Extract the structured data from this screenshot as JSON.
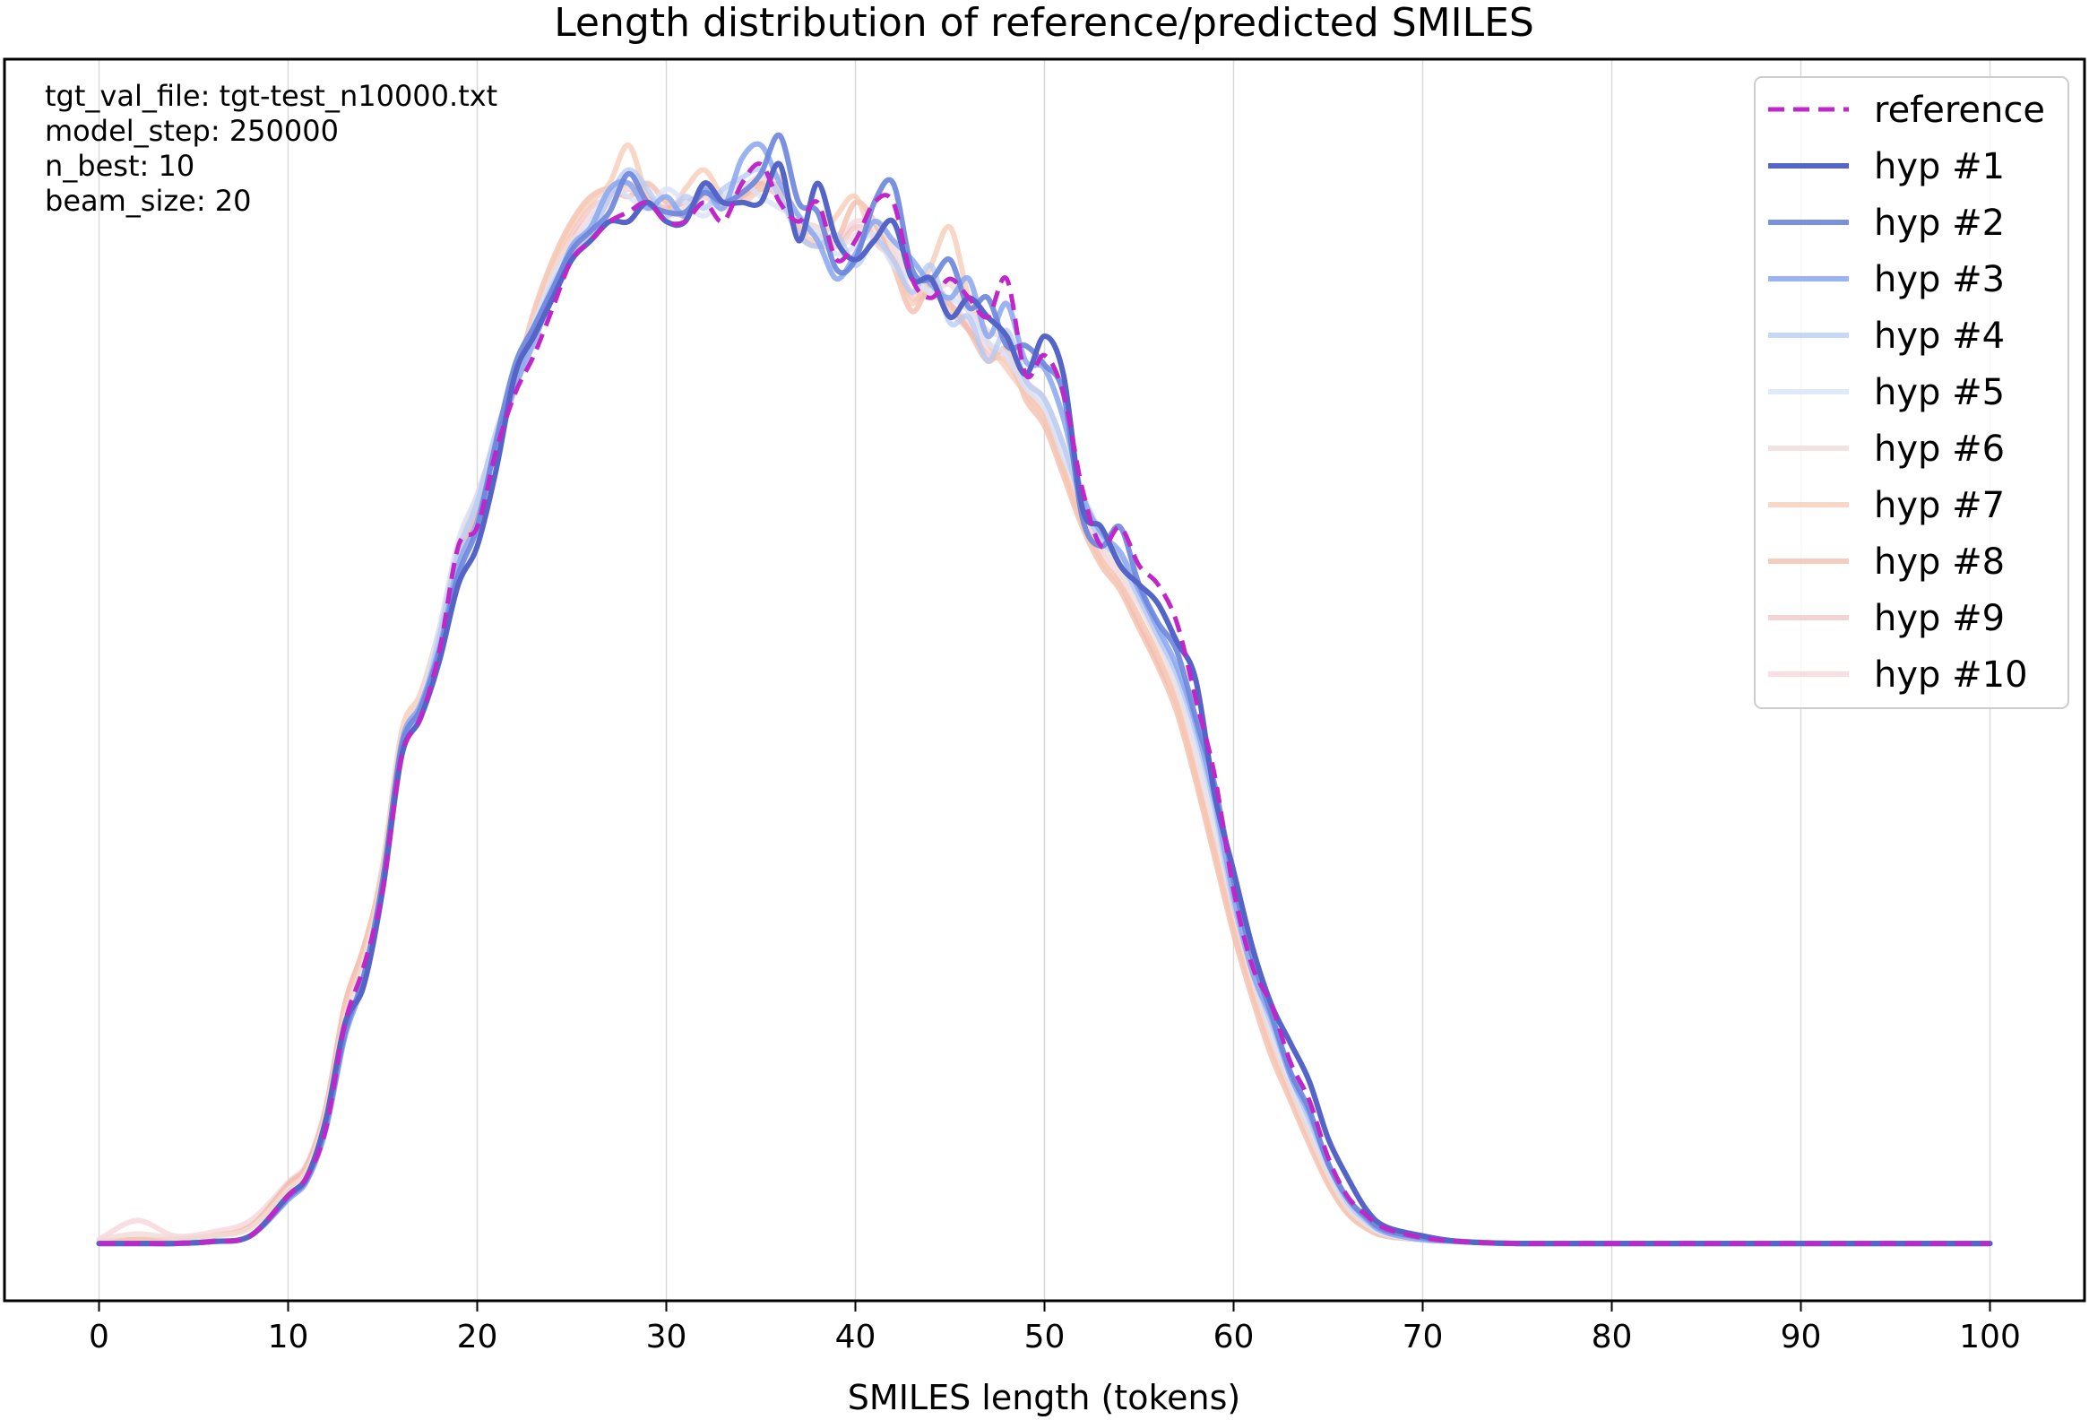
{
  "chart_data": {
    "type": "line",
    "title": "Length distribution of reference/predicted SMILES",
    "xlabel": "SMILES length (tokens)",
    "ylabel": "",
    "xlim": [
      -5,
      105
    ],
    "ylim": [
      -0.003,
      0.062
    ],
    "x_ticks": [
      "0",
      "10",
      "20",
      "30",
      "40",
      "50",
      "60",
      "70",
      "80",
      "90",
      "100"
    ],
    "y_ticks_shown": false,
    "grid": "vertical",
    "legend_placement": "top-right",
    "annotation_lines": [
      "tgt_val_file: tgt-test_n10000.txt",
      "model_step: 250000",
      "n_best: 10",
      "beam_size: 20"
    ],
    "x": [
      0,
      2,
      4,
      6,
      8,
      10,
      11,
      12,
      13,
      14,
      15,
      16,
      17,
      18,
      19,
      20,
      21,
      22,
      23,
      24,
      25,
      26,
      27,
      28,
      29,
      30,
      31,
      32,
      33,
      34,
      35,
      36,
      37,
      38,
      39,
      40,
      41,
      42,
      43,
      44,
      45,
      46,
      47,
      48,
      49,
      50,
      51,
      52,
      53,
      54,
      55,
      56,
      57,
      58,
      59,
      60,
      61,
      62,
      63,
      64,
      65,
      66,
      67,
      68,
      70,
      72,
      75,
      80,
      85,
      90,
      95,
      100
    ],
    "series": [
      {
        "name": "reference",
        "color": "#c026c8",
        "dashed": true,
        "width": 5,
        "opacity": 1,
        "values": [
          0,
          0,
          0,
          0.0001,
          0.0004,
          0.0025,
          0.0035,
          0.006,
          0.0115,
          0.0145,
          0.0185,
          0.0255,
          0.0275,
          0.031,
          0.0365,
          0.0375,
          0.0415,
          0.0445,
          0.0465,
          0.049,
          0.0515,
          0.0525,
          0.0535,
          0.054,
          0.0545,
          0.0535,
          0.0535,
          0.0545,
          0.0535,
          0.0555,
          0.0565,
          0.0545,
          0.0535,
          0.0545,
          0.0515,
          0.0525,
          0.0545,
          0.0545,
          0.0505,
          0.0495,
          0.0505,
          0.0495,
          0.0485,
          0.0505,
          0.0455,
          0.0465,
          0.0445,
          0.0395,
          0.0365,
          0.0375,
          0.0355,
          0.0345,
          0.0325,
          0.0285,
          0.0245,
          0.0185,
          0.0145,
          0.0125,
          0.0095,
          0.0075,
          0.0045,
          0.0025,
          0.0015,
          0.0008,
          0.0003,
          0.0001,
          0,
          0,
          0,
          0,
          0,
          0
        ]
      },
      {
        "name": "hyp #1",
        "color": "#5465c7",
        "dashed": false,
        "width": 6,
        "opacity": 1,
        "values": [
          0,
          0,
          0,
          0.0001,
          0.0004,
          0.0025,
          0.0035,
          0.0065,
          0.0115,
          0.0135,
          0.0185,
          0.0255,
          0.0275,
          0.0305,
          0.0345,
          0.0365,
          0.0405,
          0.0455,
          0.0475,
          0.0495,
          0.0515,
          0.0525,
          0.0535,
          0.0535,
          0.0545,
          0.0535,
          0.0535,
          0.0555,
          0.0545,
          0.0545,
          0.0545,
          0.0565,
          0.0525,
          0.0555,
          0.0525,
          0.0515,
          0.0525,
          0.0535,
          0.0505,
          0.0505,
          0.0485,
          0.0495,
          0.0485,
          0.0475,
          0.0455,
          0.0475,
          0.0455,
          0.0385,
          0.0375,
          0.0355,
          0.0345,
          0.0335,
          0.0315,
          0.0295,
          0.0235,
          0.0195,
          0.0155,
          0.0125,
          0.0105,
          0.0085,
          0.0055,
          0.0035,
          0.0018,
          0.0009,
          0.0004,
          0.0001,
          0,
          0,
          0,
          0,
          0,
          0
        ]
      },
      {
        "name": "hyp #2",
        "color": "#6c85dc",
        "dashed": false,
        "width": 6,
        "opacity": 0.9,
        "values": [
          0,
          0,
          0,
          0.0001,
          0.0004,
          0.0024,
          0.0034,
          0.0062,
          0.011,
          0.014,
          0.019,
          0.026,
          0.028,
          0.031,
          0.035,
          0.0375,
          0.042,
          0.046,
          0.048,
          0.05,
          0.052,
          0.053,
          0.054,
          0.056,
          0.0545,
          0.054,
          0.054,
          0.055,
          0.0545,
          0.055,
          0.056,
          0.058,
          0.0545,
          0.054,
          0.051,
          0.0515,
          0.0545,
          0.0555,
          0.051,
          0.0505,
          0.0515,
          0.049,
          0.0495,
          0.047,
          0.047,
          0.046,
          0.0445,
          0.038,
          0.0365,
          0.0375,
          0.0345,
          0.0325,
          0.031,
          0.0275,
          0.024,
          0.019,
          0.015,
          0.012,
          0.009,
          0.007,
          0.0042,
          0.0024,
          0.0014,
          0.0007,
          0.0003,
          0.0001,
          0,
          0,
          0,
          0,
          0,
          0
        ]
      },
      {
        "name": "hyp #3",
        "color": "#8aa7ee",
        "dashed": false,
        "width": 6,
        "opacity": 0.85,
        "values": [
          0,
          0,
          0,
          0.0001,
          0.0004,
          0.0023,
          0.0033,
          0.006,
          0.0108,
          0.0138,
          0.0188,
          0.0262,
          0.0282,
          0.0312,
          0.0355,
          0.0378,
          0.0418,
          0.0448,
          0.0472,
          0.0498,
          0.0522,
          0.0532,
          0.0552,
          0.0555,
          0.0542,
          0.0548,
          0.0538,
          0.0552,
          0.0542,
          0.0568,
          0.0575,
          0.0555,
          0.0538,
          0.0525,
          0.0505,
          0.0518,
          0.0535,
          0.0525,
          0.0515,
          0.0502,
          0.0495,
          0.0505,
          0.0475,
          0.0492,
          0.0462,
          0.0458,
          0.0432,
          0.0392,
          0.0372,
          0.0362,
          0.0342,
          0.0322,
          0.0302,
          0.0272,
          0.0232,
          0.0182,
          0.0142,
          0.0118,
          0.0088,
          0.0068,
          0.0042,
          0.0024,
          0.0013,
          0.0006,
          0.0002,
          0.0001,
          0,
          0,
          0,
          0,
          0,
          0
        ]
      },
      {
        "name": "hyp #4",
        "color": "#b4c9f4",
        "dashed": false,
        "width": 6,
        "opacity": 0.75,
        "values": [
          0,
          0,
          0,
          0.0001,
          0.0004,
          0.0023,
          0.0033,
          0.006,
          0.011,
          0.014,
          0.019,
          0.0258,
          0.0278,
          0.0318,
          0.0362,
          0.0388,
          0.0425,
          0.0452,
          0.0478,
          0.0502,
          0.0518,
          0.0528,
          0.0548,
          0.0562,
          0.0552,
          0.0538,
          0.0548,
          0.0542,
          0.0552,
          0.0558,
          0.0562,
          0.0548,
          0.0528,
          0.0522,
          0.0528,
          0.0512,
          0.0525,
          0.0515,
          0.0498,
          0.0512,
          0.0482,
          0.0485,
          0.0462,
          0.0478,
          0.0452,
          0.0442,
          0.0418,
          0.0388,
          0.0368,
          0.0358,
          0.0338,
          0.0318,
          0.0298,
          0.0268,
          0.0228,
          0.0178,
          0.0142,
          0.0115,
          0.0088,
          0.0065,
          0.0041,
          0.0022,
          0.0012,
          0.0006,
          0.0002,
          0.0001,
          0,
          0,
          0,
          0,
          0,
          0
        ]
      },
      {
        "name": "hyp #5",
        "color": "#d9e2f6",
        "dashed": false,
        "width": 6,
        "opacity": 0.8,
        "values": [
          0,
          0,
          0,
          0.0001,
          0.0004,
          0.0024,
          0.0034,
          0.0062,
          0.0112,
          0.0142,
          0.0188,
          0.0258,
          0.0282,
          0.0322,
          0.0368,
          0.0392,
          0.0422,
          0.0455,
          0.0482,
          0.0505,
          0.0522,
          0.0535,
          0.0552,
          0.0548,
          0.0542,
          0.0552,
          0.0545,
          0.0538,
          0.0548,
          0.0555,
          0.0548,
          0.0542,
          0.0538,
          0.0528,
          0.0518,
          0.0522,
          0.0528,
          0.0512,
          0.0505,
          0.0498,
          0.0495,
          0.0488,
          0.0472,
          0.0465,
          0.0448,
          0.0438,
          0.0412,
          0.0392,
          0.0372,
          0.0355,
          0.0338,
          0.0318,
          0.0295,
          0.0262,
          0.0222,
          0.0178,
          0.0142,
          0.0112,
          0.0085,
          0.0062,
          0.0039,
          0.0021,
          0.0011,
          0.0005,
          0.0002,
          0.0001,
          0,
          0,
          0,
          0,
          0,
          0
        ]
      },
      {
        "name": "hyp #6",
        "color": "#f0dcd8",
        "dashed": false,
        "width": 6,
        "opacity": 0.8,
        "values": [
          0.0002,
          0.0005,
          0.0003,
          0.0004,
          0.0008,
          0.0028,
          0.0038,
          0.0068,
          0.0118,
          0.0148,
          0.0192,
          0.0262,
          0.0285,
          0.0318,
          0.0362,
          0.0388,
          0.0418,
          0.0448,
          0.0478,
          0.0508,
          0.0525,
          0.0532,
          0.0545,
          0.0552,
          0.0545,
          0.0538,
          0.0542,
          0.0548,
          0.0542,
          0.0552,
          0.0558,
          0.0548,
          0.0535,
          0.0532,
          0.0522,
          0.0528,
          0.0535,
          0.0522,
          0.0505,
          0.0498,
          0.0502,
          0.0488,
          0.0478,
          0.0472,
          0.0452,
          0.0442,
          0.0418,
          0.0385,
          0.0365,
          0.0352,
          0.0335,
          0.0315,
          0.0292,
          0.0258,
          0.0218,
          0.0175,
          0.0138,
          0.0108,
          0.0082,
          0.0058,
          0.0036,
          0.0019,
          0.001,
          0.0005,
          0.0002,
          0.0001,
          0,
          0,
          0,
          0,
          0,
          0
        ]
      },
      {
        "name": "hyp #7",
        "color": "#f7c9b3",
        "dashed": false,
        "width": 6,
        "opacity": 0.75,
        "values": [
          0.0001,
          0.0002,
          0.0002,
          0.0004,
          0.0009,
          0.0029,
          0.0039,
          0.0069,
          0.0122,
          0.0152,
          0.0198,
          0.0268,
          0.0288,
          0.0322,
          0.0365,
          0.0392,
          0.0422,
          0.0452,
          0.0482,
          0.0512,
          0.0532,
          0.0545,
          0.0555,
          0.0575,
          0.0548,
          0.0538,
          0.0552,
          0.0562,
          0.0548,
          0.0545,
          0.0552,
          0.0558,
          0.0532,
          0.0525,
          0.0538,
          0.0548,
          0.0525,
          0.0515,
          0.0492,
          0.0512,
          0.0532,
          0.0495,
          0.0472,
          0.0458,
          0.0445,
          0.0432,
          0.0405,
          0.0378,
          0.0358,
          0.0345,
          0.0328,
          0.0308,
          0.0282,
          0.0245,
          0.0205,
          0.0165,
          0.0132,
          0.0102,
          0.0078,
          0.0055,
          0.0033,
          0.0017,
          0.0009,
          0.0004,
          0.0002,
          0.0001,
          0,
          0,
          0,
          0,
          0,
          0
        ]
      },
      {
        "name": "hyp #8",
        "color": "#f2b7a4",
        "dashed": false,
        "width": 6,
        "opacity": 0.7,
        "values": [
          0.0001,
          0.0002,
          0.0002,
          0.0004,
          0.0009,
          0.0031,
          0.0041,
          0.0071,
          0.0125,
          0.0155,
          0.0195,
          0.0262,
          0.0285,
          0.0318,
          0.0358,
          0.0385,
          0.0418,
          0.0452,
          0.0488,
          0.0515,
          0.0535,
          0.0548,
          0.0552,
          0.0548,
          0.0555,
          0.0545,
          0.0538,
          0.0552,
          0.0545,
          0.0548,
          0.0555,
          0.0552,
          0.0528,
          0.0522,
          0.0525,
          0.0545,
          0.0535,
          0.0512,
          0.0488,
          0.0502,
          0.0492,
          0.0478,
          0.0462,
          0.0468,
          0.0442,
          0.0428,
          0.0402,
          0.0375,
          0.0355,
          0.0342,
          0.0322,
          0.0302,
          0.0278,
          0.0242,
          0.0202,
          0.0162,
          0.0128,
          0.0098,
          0.0075,
          0.0052,
          0.0031,
          0.0016,
          0.0008,
          0.0004,
          0.0002,
          0.0001,
          0,
          0,
          0,
          0,
          0,
          0
        ]
      },
      {
        "name": "hyp #9",
        "color": "#efc1c0",
        "dashed": false,
        "width": 6,
        "opacity": 0.7,
        "values": [
          0.0001,
          0.0002,
          0.0002,
          0.0004,
          0.0009,
          0.003,
          0.004,
          0.007,
          0.0122,
          0.0152,
          0.0192,
          0.0258,
          0.0282,
          0.0315,
          0.0358,
          0.0385,
          0.0415,
          0.0448,
          0.0482,
          0.0508,
          0.0528,
          0.0542,
          0.0548,
          0.0555,
          0.0548,
          0.0542,
          0.0545,
          0.0548,
          0.0542,
          0.0548,
          0.0552,
          0.0548,
          0.0532,
          0.0528,
          0.0522,
          0.0532,
          0.0528,
          0.0515,
          0.0495,
          0.0498,
          0.0488,
          0.0478,
          0.0465,
          0.0462,
          0.0445,
          0.0432,
          0.0405,
          0.0378,
          0.0358,
          0.0345,
          0.0325,
          0.0305,
          0.0282,
          0.0245,
          0.0205,
          0.0165,
          0.0132,
          0.0102,
          0.0078,
          0.0055,
          0.0033,
          0.0017,
          0.0009,
          0.0004,
          0.0002,
          0.0001,
          0,
          0,
          0,
          0,
          0,
          0
        ]
      },
      {
        "name": "hyp #10",
        "color": "#f5d3da",
        "dashed": false,
        "width": 6,
        "opacity": 0.75,
        "values": [
          0.0002,
          0.0012,
          0.0004,
          0.0006,
          0.0012,
          0.0032,
          0.0042,
          0.0072,
          0.0125,
          0.0155,
          0.0195,
          0.0262,
          0.0285,
          0.0318,
          0.0362,
          0.0388,
          0.0418,
          0.0448,
          0.0478,
          0.0505,
          0.0525,
          0.0538,
          0.0545,
          0.0552,
          0.0545,
          0.0542,
          0.0545,
          0.0548,
          0.0545,
          0.0552,
          0.0555,
          0.0548,
          0.0535,
          0.0532,
          0.0525,
          0.0535,
          0.0532,
          0.0518,
          0.0498,
          0.0502,
          0.0492,
          0.0482,
          0.0468,
          0.0465,
          0.0448,
          0.0435,
          0.0408,
          0.0382,
          0.0362,
          0.0348,
          0.0328,
          0.0308,
          0.0285,
          0.0248,
          0.0208,
          0.0168,
          0.0135,
          0.0105,
          0.008,
          0.0056,
          0.0034,
          0.0018,
          0.0009,
          0.0004,
          0.0002,
          0.0001,
          0,
          0,
          0,
          0,
          0,
          0
        ]
      }
    ]
  }
}
